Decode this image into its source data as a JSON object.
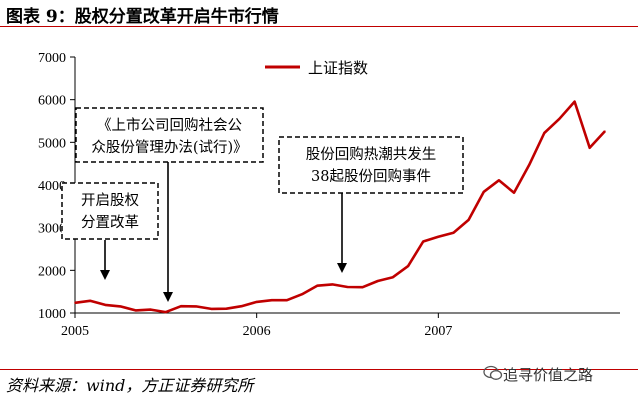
{
  "title": "图表 9：股权分置改革开启牛市行情",
  "source": "资料来源：wind，方正证券研究所",
  "watermark": "追寻价值之路",
  "colors": {
    "series": "#c00000",
    "rule": "#c00000",
    "axis": "#000000"
  },
  "chart_data": {
    "type": "line",
    "title": "",
    "xlabel": "",
    "ylabel": "",
    "legend_position": "top-right",
    "grid": false,
    "xlim": [
      "2005-01",
      "2007-12"
    ],
    "ylim": [
      1000,
      7000
    ],
    "yticks": [
      1000,
      2000,
      3000,
      4000,
      5000,
      6000,
      7000
    ],
    "xticks": [
      "2005",
      "2006",
      "2007"
    ],
    "series": [
      {
        "name": "上证指数",
        "color": "#c00000",
        "points": [
          [
            "2005-01",
            1240
          ],
          [
            "2005-02",
            1285
          ],
          [
            "2005-03",
            1190
          ],
          [
            "2005-04",
            1155
          ],
          [
            "2005-05",
            1060
          ],
          [
            "2005-06",
            1080
          ],
          [
            "2005-07",
            1020
          ],
          [
            "2005-08",
            1160
          ],
          [
            "2005-09",
            1155
          ],
          [
            "2005-10",
            1095
          ],
          [
            "2005-11",
            1100
          ],
          [
            "2005-12",
            1160
          ],
          [
            "2006-01",
            1260
          ],
          [
            "2006-02",
            1300
          ],
          [
            "2006-03",
            1300
          ],
          [
            "2006-04",
            1440
          ],
          [
            "2006-05",
            1640
          ],
          [
            "2006-06",
            1670
          ],
          [
            "2006-07",
            1610
          ],
          [
            "2006-08",
            1605
          ],
          [
            "2006-09",
            1750
          ],
          [
            "2006-10",
            1840
          ],
          [
            "2006-11",
            2100
          ],
          [
            "2006-12",
            2675
          ],
          [
            "2007-01",
            2786
          ],
          [
            "2007-02",
            2881
          ],
          [
            "2007-03",
            3183
          ],
          [
            "2007-04",
            3841
          ],
          [
            "2007-05",
            4109
          ],
          [
            "2007-06",
            3820
          ],
          [
            "2007-07",
            4471
          ],
          [
            "2007-08",
            5218
          ],
          [
            "2007-09",
            5552
          ],
          [
            "2007-10",
            5955
          ],
          [
            "2007-11",
            4871
          ],
          [
            "2007-12",
            5261
          ]
        ]
      }
    ],
    "annotations": [
      {
        "lines": [
          "开启股权",
          "分置改革"
        ],
        "x": "2005-03"
      },
      {
        "lines": [
          "《上市公司回购社会公",
          "众股份管理办法(试行)》"
        ],
        "x": "2005-06"
      },
      {
        "lines": [
          "股份回购热潮共发生",
          "38起股份回购事件"
        ],
        "x": "2006-08"
      }
    ]
  }
}
